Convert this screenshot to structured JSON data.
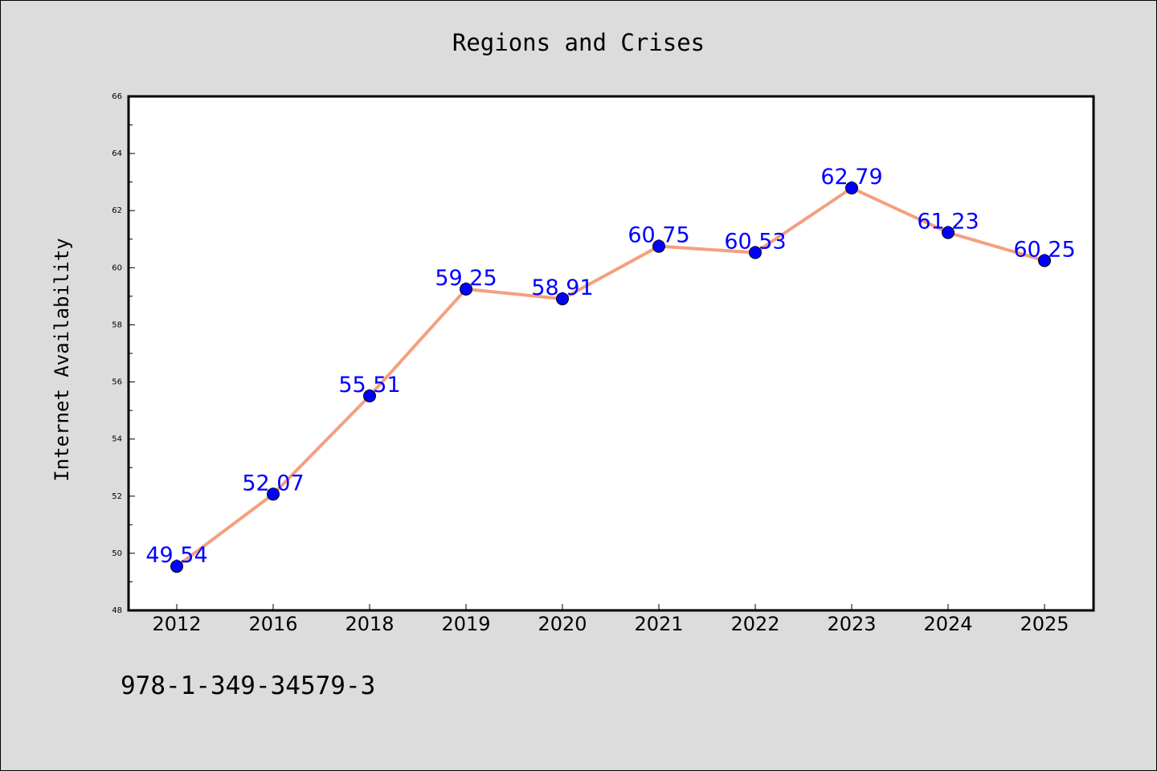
{
  "chart_data": {
    "type": "line",
    "title": "Regions and Crises",
    "xlabel": "",
    "ylabel": "Internet Availability",
    "categories": [
      "2012",
      "2016",
      "2018",
      "2019",
      "2020",
      "2021",
      "2022",
      "2023",
      "2024",
      "2025"
    ],
    "series": [
      {
        "values": [
          49.54,
          52.07,
          55.51,
          59.25,
          58.91,
          60.75,
          60.53,
          62.79,
          61.23,
          60.25
        ],
        "line_color": "#f4a07f",
        "marker_color": "#0000ff"
      }
    ],
    "data_labels": [
      "49.54",
      "52.07",
      "55.51",
      "59.25",
      "58.91",
      "60.75",
      "60.53",
      "62.79",
      "61.23",
      "60.25"
    ],
    "data_label_color": "#0000ff",
    "ylim": [
      48,
      66
    ],
    "yticks": [
      "48",
      "50",
      "52",
      "54",
      "56",
      "58",
      "60",
      "62",
      "64",
      "66"
    ],
    "grid": false,
    "legend": "none"
  },
  "footer": {
    "isbn": "978-1-349-34579-3"
  },
  "colors": {
    "background": "#dcdcdc",
    "plot_background": "#ffffff",
    "axes": "#000000"
  }
}
